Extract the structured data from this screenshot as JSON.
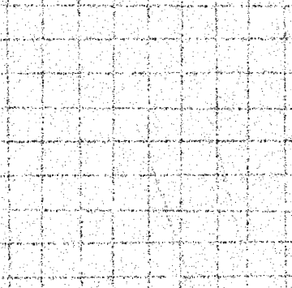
{
  "image": {
    "background_color": "#ffffff",
    "ink_color": "#111111",
    "visible_text": ""
  }
}
